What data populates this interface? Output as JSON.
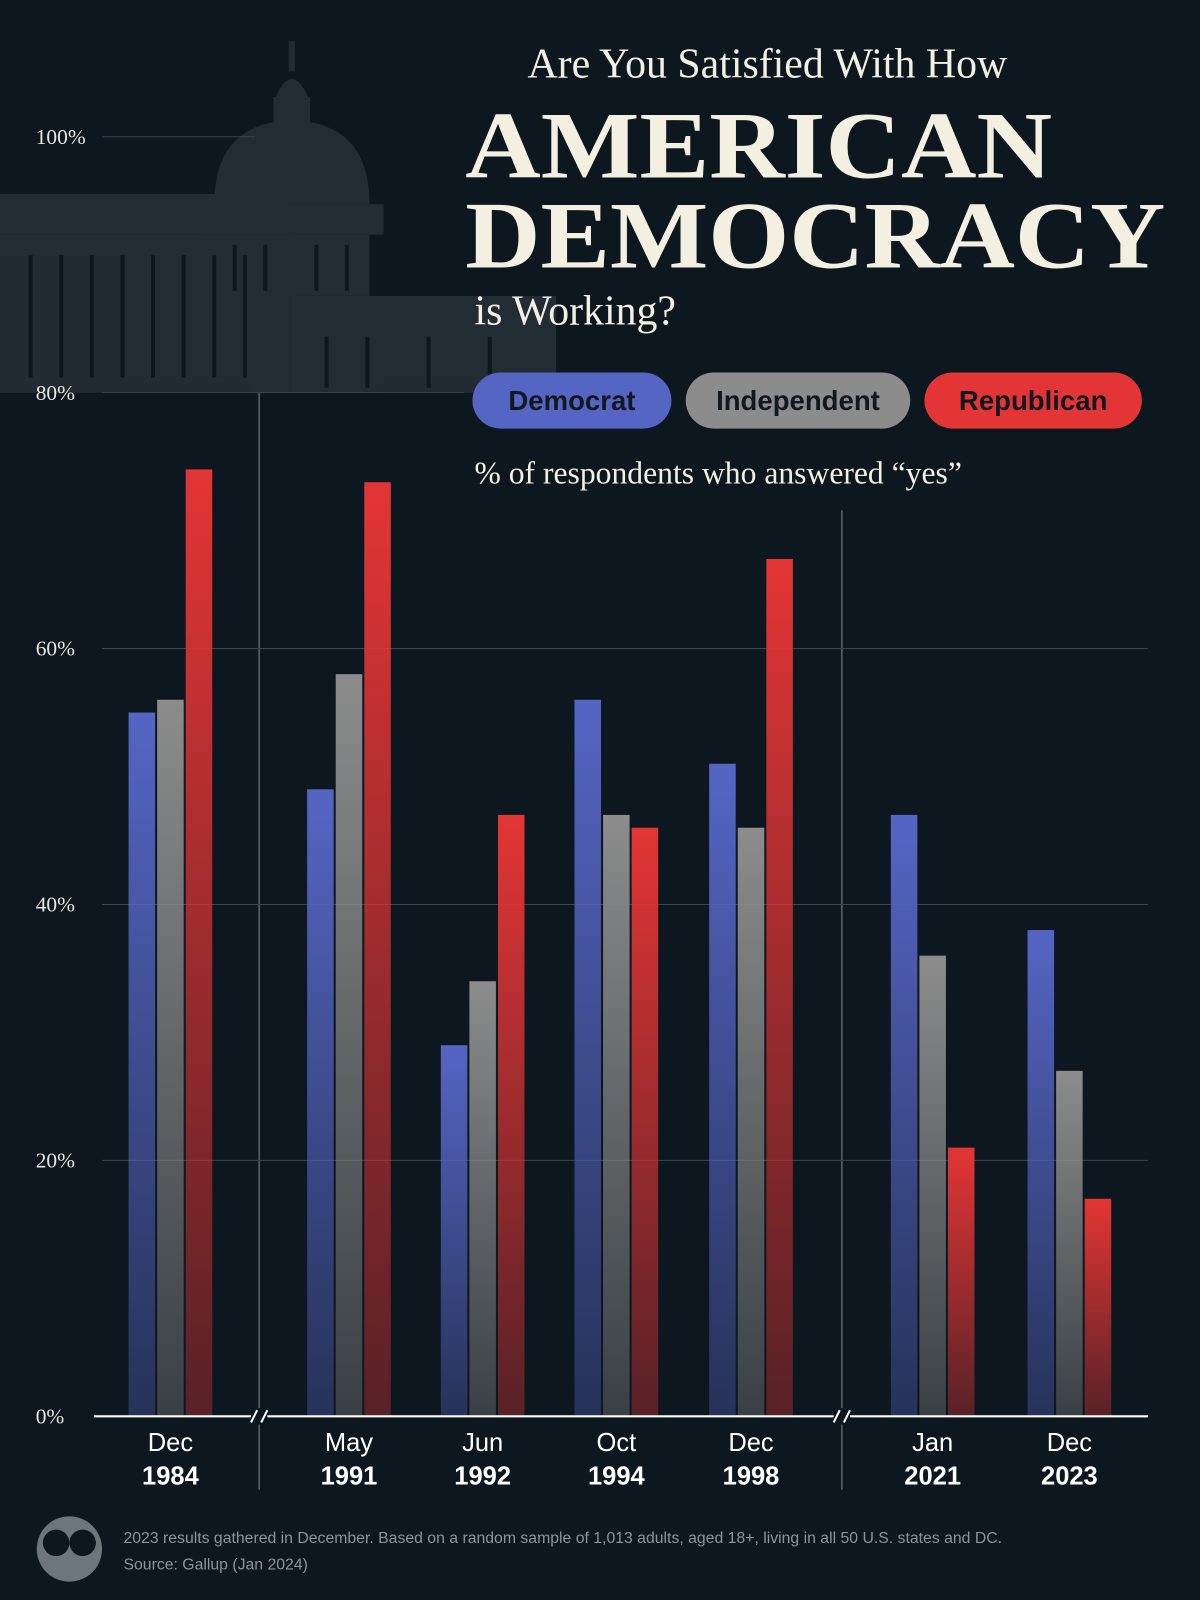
{
  "chart_data": {
    "type": "bar",
    "kicker": "Are You Satisfied With How",
    "title": [
      "AMERICAN",
      "DEMOCRACY"
    ],
    "title_end": "is Working?",
    "subtitle": "% of respondents who answered “yes”",
    "categories": [
      [
        "Dec",
        "1984"
      ],
      [
        "May",
        "1991"
      ],
      [
        "Jun",
        "1992"
      ],
      [
        "Oct",
        "1994"
      ],
      [
        "Dec",
        "1998"
      ],
      [
        "Jan",
        "2021"
      ],
      [
        "Dec",
        "2023"
      ]
    ],
    "series": [
      {
        "name": "Democrat",
        "color": "#5565c4",
        "values": [
          55,
          49,
          29,
          56,
          51,
          47,
          38
        ]
      },
      {
        "name": "Independent",
        "color": "#8c8c8c",
        "values": [
          56,
          58,
          34,
          47,
          46,
          36,
          27
        ]
      },
      {
        "name": "Republican",
        "color": "#e33535",
        "values": [
          74,
          73,
          47,
          46,
          67,
          21,
          17
        ]
      }
    ],
    "ylim": [
      0,
      100
    ],
    "yticks": [
      {
        "value": 0,
        "label": "0%"
      },
      {
        "value": 20,
        "label": "20%"
      },
      {
        "value": 40,
        "label": "40%"
      },
      {
        "value": 60,
        "label": "60%"
      },
      {
        "value": 80,
        "label": "80%"
      },
      {
        "value": 100,
        "label": "100%"
      }
    ],
    "grid": true,
    "note": "2023 results gathered in December. Based on a random sample of 1,013 adults, aged 18+, living in all 50 U.S. states and DC.",
    "source": "Source: Gallup (Jan 2024)"
  }
}
